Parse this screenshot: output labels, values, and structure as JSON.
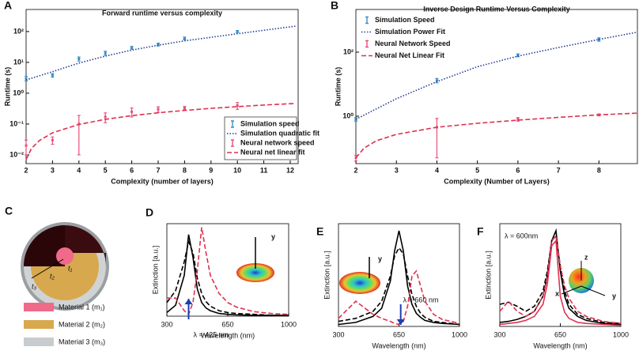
{
  "chart_data": [
    {
      "type": "errorline",
      "panel": "A",
      "title": "Forward runtime versus complexity",
      "xlabel": "Complexity (number of layers)",
      "ylabel": "Runtime (s)",
      "xlim": [
        2,
        12.3
      ],
      "ylim": [
        0.0052,
        520
      ],
      "yscale": "log",
      "xticks": [
        2,
        3,
        4,
        5,
        6,
        7,
        8,
        9,
        10,
        11,
        12
      ],
      "yticks": [
        {
          "value": 0.01,
          "label": "10⁻²"
        },
        {
          "value": 0.1,
          "label": "10⁻¹"
        },
        {
          "value": 1,
          "label": "10⁰"
        },
        {
          "value": 10,
          "label": "10¹"
        },
        {
          "value": 100,
          "label": "10²"
        }
      ],
      "legend": "lower right",
      "series": [
        {
          "name": "Simulation speed",
          "color": "#3a8fc7",
          "mode": "errorbar",
          "x": [
            2,
            3,
            4,
            5,
            6,
            7,
            8,
            10
          ],
          "values": [
            3,
            3.8,
            13,
            20,
            30,
            38,
            60,
            100
          ],
          "errors": [
            0.5,
            0.5,
            2,
            3,
            3,
            4,
            6,
            8
          ]
        },
        {
          "name": "Simulation quadratic fit",
          "color": "#283c96",
          "mode": "line",
          "dash": "dotted",
          "x": [
            2,
            3,
            4,
            5,
            6,
            7,
            8,
            9,
            10,
            11,
            12.2
          ],
          "values": [
            2.7,
            5,
            9.5,
            16,
            25,
            36,
            50,
            65,
            85,
            110,
            150
          ]
        },
        {
          "name": "Neural network speed",
          "color": "#e8507a",
          "mode": "errorbar",
          "x": [
            2,
            3,
            4,
            5,
            6,
            7,
            8,
            10
          ],
          "values": [
            0.02,
            0.03,
            0.1,
            0.17,
            0.25,
            0.3,
            0.33,
            0.4
          ],
          "errors": [
            0.01,
            0.008,
            0.09,
            0.06,
            0.08,
            0.06,
            0.04,
            0.1
          ]
        },
        {
          "name": "Neural net linear fit",
          "color": "#e0304f",
          "mode": "line",
          "dash": "dashed",
          "x": [
            2,
            2.2,
            2.5,
            3,
            4,
            5,
            6,
            7,
            8,
            9,
            10,
            11,
            12.2
          ],
          "values": [
            0.007,
            0.016,
            0.029,
            0.052,
            0.097,
            0.142,
            0.187,
            0.232,
            0.277,
            0.322,
            0.367,
            0.412,
            0.466
          ]
        }
      ]
    },
    {
      "type": "errorline",
      "panel": "B",
      "title": "Inverse Design Runtime Versus Complexity",
      "xlabel": "Complexity (Number of Layers)",
      "ylabel": "Runtime (s)",
      "xlim": [
        2,
        8.95
      ],
      "ylim": [
        0.033,
        2150
      ],
      "yscale": "log",
      "xticks": [
        2,
        3,
        4,
        5,
        6,
        7,
        8
      ],
      "yticks": [
        {
          "value": 1,
          "label": "10⁰"
        },
        {
          "value": 100,
          "label": "10²"
        }
      ],
      "legend": "upper left",
      "series": [
        {
          "name": "Simulation Speed",
          "color": "#3a8fc7",
          "mode": "errorbar",
          "x": [
            2,
            4,
            6,
            8
          ],
          "values": [
            0.8,
            13,
            80,
            250
          ],
          "errors": [
            0.1,
            2,
            8,
            30
          ]
        },
        {
          "name": "Simulation Power Fit",
          "color": "#283c96",
          "mode": "line",
          "dash": "dotted",
          "x": [
            2,
            3,
            4,
            5,
            6,
            7,
            8,
            8.95
          ],
          "values": [
            0.8,
            3.5,
            12,
            35,
            75,
            140,
            250,
            420
          ]
        },
        {
          "name": "Neural Network Speed",
          "color": "#e8507a",
          "mode": "errorbar",
          "x": [
            2,
            4,
            6,
            8
          ],
          "values": [
            0.05,
            0.45,
            0.8,
            1.1
          ],
          "errors": [
            0.01,
            0.4,
            0.1,
            0.08
          ]
        },
        {
          "name": "Neural Net Linear Fit",
          "color": "#e0304f",
          "mode": "line",
          "dash": "dashed",
          "x": [
            2,
            2.2,
            2.5,
            3,
            4,
            5,
            6,
            7,
            8,
            8.95
          ],
          "values": [
            0.05,
            0.1,
            0.17,
            0.27,
            0.45,
            0.6,
            0.75,
            0.92,
            1.1,
            1.25
          ]
        }
      ]
    },
    {
      "type": "spectrum",
      "panel": "D",
      "xlabel": "Wavelength (nm)",
      "ylabel": "Extinction [a.u.]",
      "xlim": [
        300,
        1000
      ],
      "ylim": [
        0,
        1.02
      ],
      "xticks": [
        300,
        650,
        1000
      ],
      "annotations": [
        {
          "text": "λ = 425 nm",
          "x": 425
        }
      ],
      "inset_labels": [
        "y"
      ],
      "x": [
        300,
        350,
        400,
        425,
        450,
        475,
        500,
        525,
        550,
        600,
        650,
        700,
        800,
        900,
        1000
      ],
      "series": [
        {
          "color": "#000000",
          "dash": "solid",
          "values": [
            0.04,
            0.12,
            0.45,
            0.9,
            0.65,
            0.3,
            0.15,
            0.09,
            0.06,
            0.03,
            0.02,
            0.015,
            0.01,
            0.01,
            0.01
          ]
        },
        {
          "color": "#000000",
          "dash": "dashed",
          "values": [
            0.15,
            0.28,
            0.6,
            0.82,
            0.7,
            0.42,
            0.25,
            0.16,
            0.11,
            0.06,
            0.04,
            0.03,
            0.02,
            0.01,
            0.01
          ]
        },
        {
          "color": "#e0304f",
          "dash": "dashed",
          "values": [
            0.2,
            0.2,
            0.06,
            0.02,
            0.15,
            0.5,
            0.98,
            0.7,
            0.45,
            0.25,
            0.15,
            0.1,
            0.05,
            0.03,
            0.02
          ]
        }
      ]
    },
    {
      "type": "spectrum",
      "panel": "E",
      "xlabel": "Wavelength (nm)",
      "ylabel": "Extinction [a.u.]",
      "xlim": [
        300,
        1000
      ],
      "ylim": [
        0,
        1.02
      ],
      "xticks": [
        300,
        650,
        1000
      ],
      "annotations": [
        {
          "text": "λ = 660 nm",
          "x": 660
        }
      ],
      "inset_labels": [
        "y"
      ],
      "x": [
        300,
        400,
        500,
        550,
        600,
        625,
        650,
        675,
        700,
        725,
        750,
        775,
        800,
        850,
        900,
        1000
      ],
      "series": [
        {
          "color": "#000000",
          "dash": "solid",
          "values": [
            0.02,
            0.04,
            0.1,
            0.18,
            0.45,
            0.75,
            0.95,
            0.75,
            0.4,
            0.22,
            0.13,
            0.09,
            0.06,
            0.04,
            0.03,
            0.02
          ]
        },
        {
          "color": "#000000",
          "dash": "dashed",
          "values": [
            0.05,
            0.08,
            0.15,
            0.25,
            0.5,
            0.7,
            0.78,
            0.72,
            0.5,
            0.32,
            0.2,
            0.13,
            0.09,
            0.05,
            0.04,
            0.02
          ]
        },
        {
          "color": "#e0304f",
          "dash": "dashed",
          "values": [
            0.08,
            0.25,
            0.12,
            0.08,
            0.05,
            0.03,
            0.02,
            0.05,
            0.2,
            0.5,
            0.55,
            0.4,
            0.25,
            0.12,
            0.07,
            0.03
          ]
        }
      ]
    },
    {
      "type": "spectrum",
      "panel": "F",
      "xlabel": "Wavelength (nm)",
      "ylabel": "Extinction [a.u.]",
      "xlim": [
        300,
        1000
      ],
      "ylim": [
        0,
        1.02
      ],
      "xticks": [
        300,
        650,
        1000
      ],
      "annotations": [
        {
          "text": "λ = 600nm"
        }
      ],
      "inset_labels": [
        "z",
        "x",
        "y"
      ],
      "x": [
        300,
        350,
        400,
        450,
        500,
        550,
        575,
        600,
        625,
        650,
        675,
        700,
        750,
        800,
        900,
        1000
      ],
      "series": [
        {
          "color": "#000000",
          "dash": "solid",
          "values": [
            0.04,
            0.05,
            0.07,
            0.1,
            0.15,
            0.3,
            0.5,
            0.85,
            0.95,
            0.55,
            0.3,
            0.18,
            0.1,
            0.06,
            0.03,
            0.02
          ]
        },
        {
          "color": "#000000",
          "dash": "dashed",
          "values": [
            0.22,
            0.24,
            0.2,
            0.15,
            0.2,
            0.35,
            0.55,
            0.85,
            0.9,
            0.6,
            0.35,
            0.22,
            0.12,
            0.08,
            0.04,
            0.03
          ]
        },
        {
          "color": "#e0304f",
          "dash": "solid",
          "values": [
            0.02,
            0.03,
            0.04,
            0.06,
            0.1,
            0.22,
            0.42,
            0.8,
            0.85,
            0.3,
            0.14,
            0.08,
            0.04,
            0.03,
            0.02,
            0.01
          ]
        },
        {
          "color": "#e0304f",
          "dash": "dashed",
          "values": [
            0.15,
            0.25,
            0.15,
            0.1,
            0.15,
            0.3,
            0.5,
            0.85,
            0.9,
            0.6,
            0.4,
            0.28,
            0.15,
            0.1,
            0.05,
            0.03
          ]
        }
      ]
    }
  ],
  "diagram": {
    "label": "C",
    "thickness_labels": [
      "t₁",
      "t₂",
      "t₃"
    ],
    "legend": [
      "Material 1 (m₁)",
      "Material 2 (m₂)",
      "Material 3 (m₃)"
    ]
  }
}
